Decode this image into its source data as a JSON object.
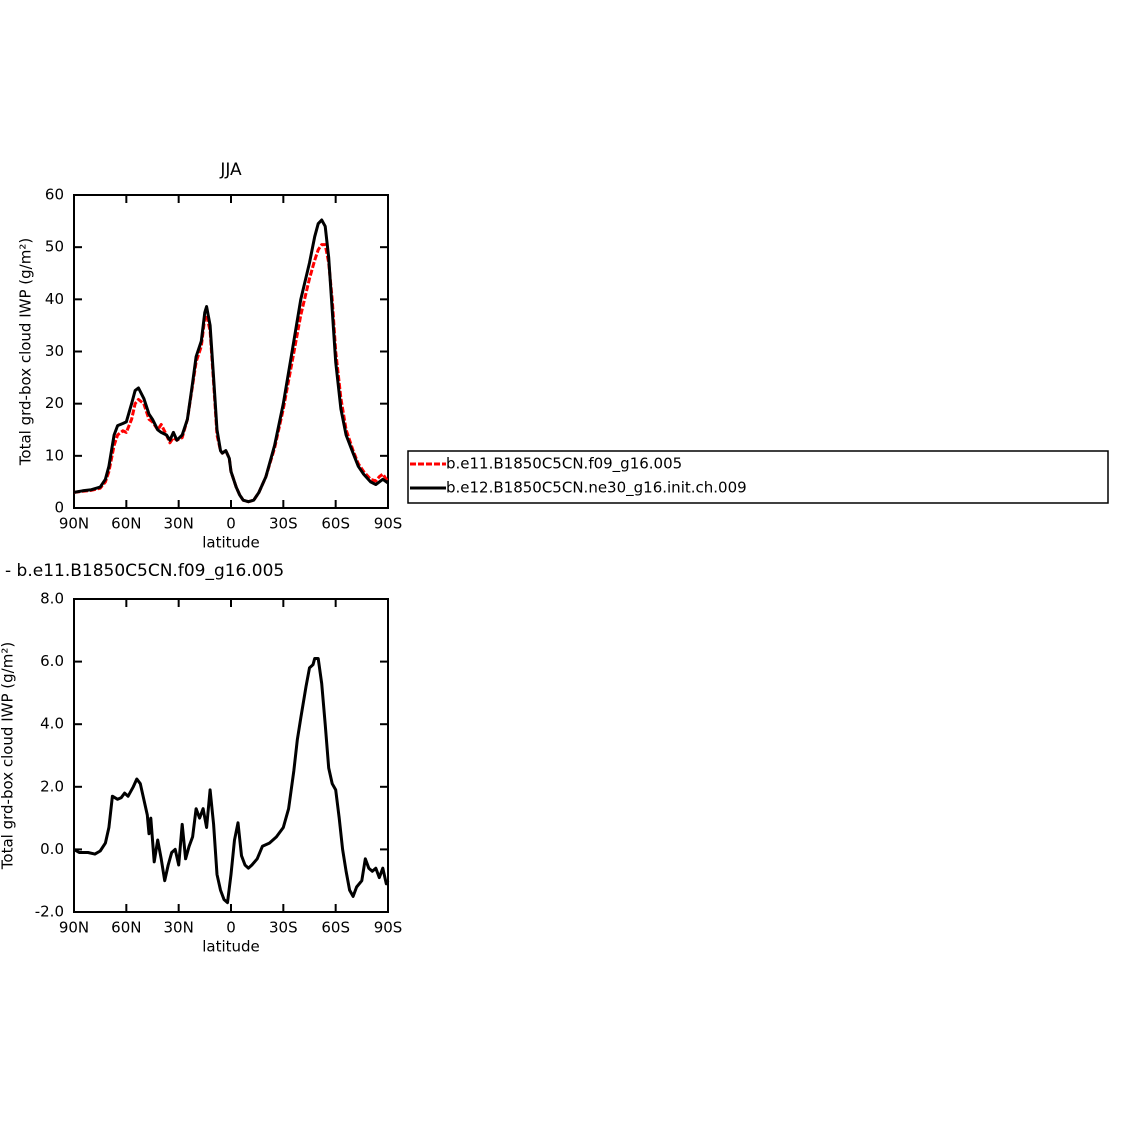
{
  "chart_data": [
    {
      "type": "line",
      "title": "JJA",
      "x_label": "latitude",
      "y_label": "Total grd-box cloud IWP (g/m²)",
      "x": [
        90,
        85,
        80,
        75,
        72,
        70,
        67,
        65,
        62,
        60,
        57,
        55,
        53,
        50,
        47,
        45,
        42,
        40,
        37,
        35,
        33,
        31,
        28,
        25,
        22,
        20,
        17,
        15,
        14,
        12,
        10,
        8,
        6,
        5,
        3,
        1,
        0,
        -3,
        -5,
        -7,
        -10,
        -13,
        -16,
        -20,
        -25,
        -30,
        -35,
        -40,
        -45,
        -48,
        -50,
        -52,
        -54,
        -56,
        -58,
        -60,
        -63,
        -66,
        -70,
        -73,
        -76,
        -80,
        -83,
        -85,
        -87,
        -90
      ],
      "series": [
        {
          "name": "b.e11.B1850C5CN.f09_g16.005",
          "color": "#ff0000",
          "style": "dashed",
          "values": [
            3,
            3.2,
            3.4,
            3.8,
            5,
            7,
            12,
            14,
            14.8,
            14.5,
            17,
            20,
            20.8,
            20,
            17,
            16.5,
            15,
            16,
            14,
            12.5,
            13.5,
            13,
            13.5,
            17,
            23.5,
            28,
            31,
            36.5,
            37,
            34,
            24,
            14,
            11,
            10.5,
            11,
            9.5,
            7,
            4,
            2.5,
            1.5,
            1.2,
            1.5,
            3,
            6,
            11.5,
            19,
            28,
            37,
            44,
            47.5,
            49.5,
            50.5,
            50.5,
            47,
            40,
            30,
            21,
            15,
            11,
            8.5,
            7,
            5.5,
            5.2,
            6,
            6.5,
            5
          ]
        },
        {
          "name": "b.e12.B1850C5CN.ne30_g16.init.ch.009",
          "color": "#000000",
          "style": "solid",
          "values": [
            3,
            3.3,
            3.5,
            4,
            5.5,
            8,
            14,
            15.8,
            16.2,
            16.5,
            20,
            22.5,
            23,
            21,
            18,
            17,
            15,
            14.5,
            14,
            13,
            14.5,
            13,
            14,
            17,
            24,
            29,
            32,
            37.5,
            38.6,
            35,
            25,
            15,
            11,
            10.5,
            11,
            9.5,
            7,
            4,
            2.5,
            1.5,
            1.2,
            1.5,
            3,
            6,
            12,
            20,
            30,
            40,
            47,
            52,
            54.5,
            55.2,
            54,
            48,
            38,
            28,
            19,
            14,
            10.5,
            8,
            6.5,
            5,
            4.5,
            5,
            5.5,
            4.8
          ]
        }
      ],
      "xlim": [
        90,
        -90
      ],
      "xticks": [
        {
          "value": 90,
          "label": "90N"
        },
        {
          "value": 60,
          "label": "60N"
        },
        {
          "value": 30,
          "label": "30N"
        },
        0,
        {
          "value": -30,
          "label": "30S"
        },
        {
          "value": -60,
          "label": "60S"
        },
        {
          "value": -90,
          "label": "90S"
        }
      ],
      "ylim": [
        0,
        60
      ],
      "yticks": [
        0,
        10,
        20,
        30,
        40,
        50,
        60
      ],
      "legend": "right"
    },
    {
      "type": "line",
      "title": "- b.e11.B1850C5CN.f09_g16.005",
      "x_label": "latitude",
      "y_label": "Total grd-box cloud IWP (g/m²)",
      "x": [
        90,
        87,
        82,
        78,
        75,
        72,
        70,
        68,
        65,
        63,
        61,
        59,
        56,
        54,
        52,
        50,
        48,
        47,
        46,
        44,
        42,
        40,
        38,
        36,
        34,
        32,
        30,
        28,
        26,
        24,
        22,
        20,
        18,
        16,
        14,
        12,
        10,
        8,
        6,
        4,
        2,
        0,
        -2,
        -4,
        -6,
        -8,
        -10,
        -12,
        -15,
        -18,
        -22,
        -26,
        -30,
        -33,
        -36,
        -38,
        -40,
        -43,
        -45,
        -47,
        -48,
        -50,
        -52,
        -54,
        -56,
        -58,
        -60,
        -62,
        -64,
        -66,
        -68,
        -70,
        -72,
        -75,
        -77,
        -79,
        -81,
        -83,
        -85,
        -87,
        -89,
        -90
      ],
      "series": [
        {
          "color": "#000000",
          "style": "solid",
          "values": [
            0,
            -0.1,
            -0.1,
            -0.15,
            -0.05,
            0.2,
            0.7,
            1.7,
            1.6,
            1.65,
            1.8,
            1.7,
            2.0,
            2.25,
            2.1,
            1.6,
            1.1,
            0.5,
            1.0,
            -0.4,
            0.3,
            -0.3,
            -1.0,
            -0.5,
            -0.1,
            0,
            -0.5,
            0.8,
            -0.3,
            0.1,
            0.4,
            1.3,
            1.0,
            1.3,
            0.7,
            1.9,
            0.8,
            -0.8,
            -1.3,
            -1.6,
            -1.7,
            -0.8,
            0.3,
            0.85,
            -0.2,
            -0.5,
            -0.6,
            -0.5,
            -0.3,
            0.1,
            0.2,
            0.4,
            0.7,
            1.3,
            2.5,
            3.5,
            4.2,
            5.2,
            5.8,
            5.9,
            6.1,
            6.1,
            5.3,
            4.0,
            2.6,
            2.1,
            1.9,
            1.0,
            0,
            -0.7,
            -1.3,
            -1.5,
            -1.2,
            -1.0,
            -0.3,
            -0.6,
            -0.7,
            -0.6,
            -0.9,
            -0.6,
            -1.1,
            -1.0
          ]
        }
      ],
      "xlim": [
        90,
        -90
      ],
      "xticks": [
        {
          "value": 90,
          "label": "90N"
        },
        {
          "value": 60,
          "label": "60N"
        },
        {
          "value": 30,
          "label": "30N"
        },
        0,
        {
          "value": -30,
          "label": "30S"
        },
        {
          "value": -60,
          "label": "60S"
        },
        {
          "value": -90,
          "label": "90S"
        }
      ],
      "ylim": [
        -2,
        8
      ],
      "yticks": [
        {
          "value": -2,
          "label": "-2.0"
        },
        {
          "value": 0,
          "label": "0.0"
        },
        {
          "value": 2,
          "label": "2.0"
        },
        {
          "value": 4,
          "label": "4.0"
        },
        {
          "value": 6,
          "label": "6.0"
        },
        {
          "value": 8,
          "label": "8.0"
        }
      ]
    }
  ]
}
